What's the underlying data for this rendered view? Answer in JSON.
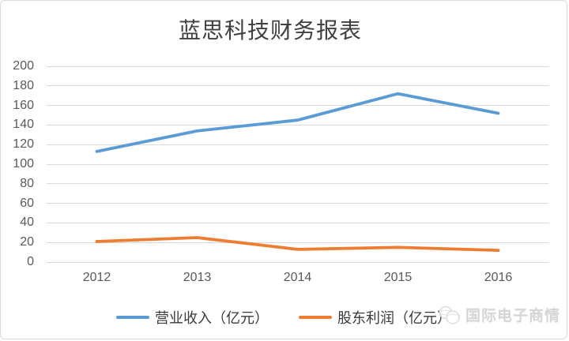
{
  "chart_data": {
    "type": "line",
    "title": "蓝思科技财务报表",
    "categories": [
      "2012",
      "2013",
      "2014",
      "2015",
      "2016"
    ],
    "series": [
      {
        "name": "营业收入（亿元）",
        "color": "#5B9BD5",
        "values": [
          113,
          134,
          145,
          172,
          152
        ]
      },
      {
        "name": "股东利润（亿元）",
        "color": "#ED7D31",
        "values": [
          21,
          25,
          13,
          15,
          12
        ]
      }
    ],
    "ylim": [
      0,
      200
    ],
    "ytick_step": 20,
    "yticks": [
      0,
      20,
      40,
      60,
      80,
      100,
      120,
      140,
      160,
      180,
      200
    ],
    "xlabel": "",
    "ylabel": "",
    "grid": "horizontal",
    "legend_position": "bottom"
  },
  "watermark": {
    "label": "国际电子商情",
    "icon": "globe"
  }
}
